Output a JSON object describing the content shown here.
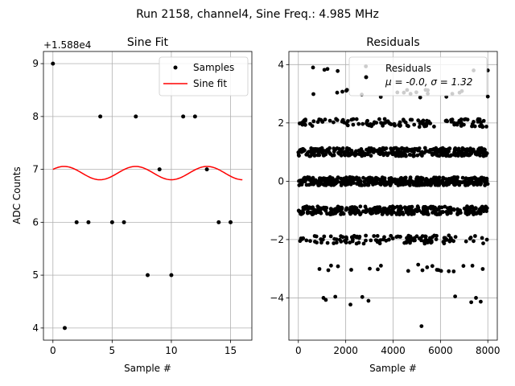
{
  "suptitle": "Run 2158, channel4, Sine Freq.: 4.985 MHz",
  "chart_data": [
    {
      "type": "scatter",
      "title": "Sine Fit",
      "xlabel": "Sample #",
      "ylabel": "ADC Counts",
      "offset_label": "+1.588e4",
      "xlim": [
        -0.8,
        16.8
      ],
      "ylim": [
        3.77,
        9.23
      ],
      "xticks": [
        0,
        5,
        10,
        15
      ],
      "yticks": [
        4,
        5,
        6,
        7,
        8,
        9
      ],
      "grid": true,
      "legend_position": "top-right",
      "series": [
        {
          "name": "Samples",
          "kind": "points",
          "x": [
            0,
            1,
            2,
            3,
            4,
            5,
            6,
            7,
            8,
            9,
            10,
            11,
            12,
            13,
            14,
            15
          ],
          "y": [
            9,
            4,
            6,
            6,
            8,
            6,
            6,
            8,
            5,
            7,
            5,
            8,
            8,
            7,
            6,
            6
          ]
        },
        {
          "name": "Sine fit",
          "kind": "line",
          "color": "#ff0000",
          "x_range": [
            0,
            16
          ],
          "amplitude": 0.126,
          "mean": 6.93,
          "cycles_per_sample": 0.1657,
          "phase": 0.585
        }
      ]
    },
    {
      "type": "scatter",
      "title": "Residuals",
      "xlabel": "Sample #",
      "xlim": [
        -400,
        8400
      ],
      "ylim": [
        -5.45,
        4.45
      ],
      "xticks": [
        0,
        2000,
        4000,
        6000,
        8000
      ],
      "yticks": [
        -4,
        -2,
        0,
        2,
        4
      ],
      "grid": true,
      "legend_position": "top-right",
      "n_samples": 8000,
      "residual_levels": [
        -3,
        -2,
        -1,
        0,
        1,
        2,
        3
      ],
      "band_jitter": 0.14,
      "band_count_weights": [
        1,
        6,
        16,
        22,
        16,
        6,
        1
      ],
      "outliers": [
        {
          "x": 620,
          "y": 3.9
        },
        {
          "x": 1100,
          "y": 3.82
        },
        {
          "x": 1230,
          "y": 3.85
        },
        {
          "x": 1660,
          "y": 3.78
        },
        {
          "x": 2850,
          "y": 3.94
        },
        {
          "x": 7400,
          "y": 3.8
        },
        {
          "x": 8000,
          "y": 3.8
        },
        {
          "x": 1060,
          "y": -4.0
        },
        {
          "x": 1160,
          "y": -4.07
        },
        {
          "x": 1560,
          "y": -3.96
        },
        {
          "x": 2200,
          "y": -4.23
        },
        {
          "x": 2700,
          "y": -3.97
        },
        {
          "x": 2960,
          "y": -4.1
        },
        {
          "x": 6620,
          "y": -3.95
        },
        {
          "x": 7300,
          "y": -4.15
        },
        {
          "x": 7500,
          "y": -4.0
        },
        {
          "x": 7700,
          "y": -4.13
        },
        {
          "x": 5200,
          "y": -4.97
        }
      ],
      "legend_name": "Residuals",
      "legend_stats": "μ = -0.0, σ = 1.32"
    }
  ]
}
